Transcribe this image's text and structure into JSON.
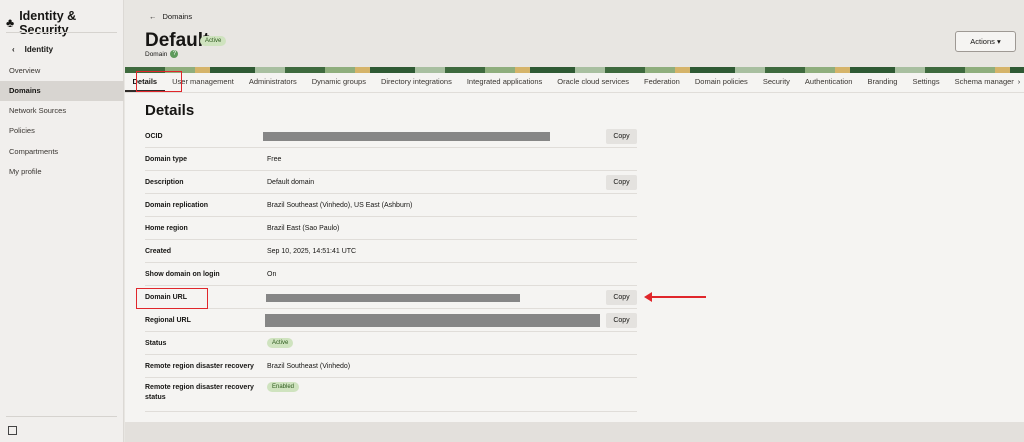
{
  "sidebar": {
    "title": "Identity & Security",
    "back_label": "Identity",
    "items": [
      {
        "label": "Overview"
      },
      {
        "label": "Domains",
        "selected": true
      },
      {
        "label": "Network Sources"
      },
      {
        "label": "Policies"
      },
      {
        "label": "Compartments"
      },
      {
        "label": "My profile"
      }
    ]
  },
  "header": {
    "breadcrumb": "Domains",
    "title": "Default",
    "status": "Active",
    "subtitle": "Domain",
    "actions_label": "Actions"
  },
  "tabs": [
    "Details",
    "User management",
    "Administrators",
    "Dynamic groups",
    "Directory integrations",
    "Integrated applications",
    "Oracle cloud services",
    "Federation",
    "Domain policies",
    "Security",
    "Authentication",
    "Branding",
    "Settings",
    "Schema managemen"
  ],
  "details": {
    "heading": "Details",
    "copy_label": "Copy",
    "rows": [
      {
        "label": "OCID",
        "value": "",
        "redacted": true,
        "copy": true
      },
      {
        "label": "Domain type",
        "value": "Free"
      },
      {
        "label": "Description",
        "value": "Default domain",
        "copy": true
      },
      {
        "label": "Domain replication",
        "value": "Brazil Southeast (Vinhedo), US East (Ashburn)"
      },
      {
        "label": "Home region",
        "value": "Brazil East (Sao Paulo)"
      },
      {
        "label": "Created",
        "value": "Sep 10, 2025, 14:51:41 UTC"
      },
      {
        "label": "Show domain on login",
        "value": "On"
      },
      {
        "label": "Domain URL",
        "value": "",
        "redacted": true,
        "copy": true
      },
      {
        "label": "Regional URL",
        "value": "",
        "redacted": true,
        "copy": true
      },
      {
        "label": "Status",
        "badge": "Active"
      },
      {
        "label": "Remote region disaster recovery",
        "value": "Brazil Southeast (Vinhedo)"
      },
      {
        "label": "Remote region disaster recovery status",
        "badge": "Enabled"
      }
    ]
  },
  "colors": {
    "annotation": "#e0262b",
    "badge_bg": "#cfe3bf",
    "redaction": "#868686"
  }
}
